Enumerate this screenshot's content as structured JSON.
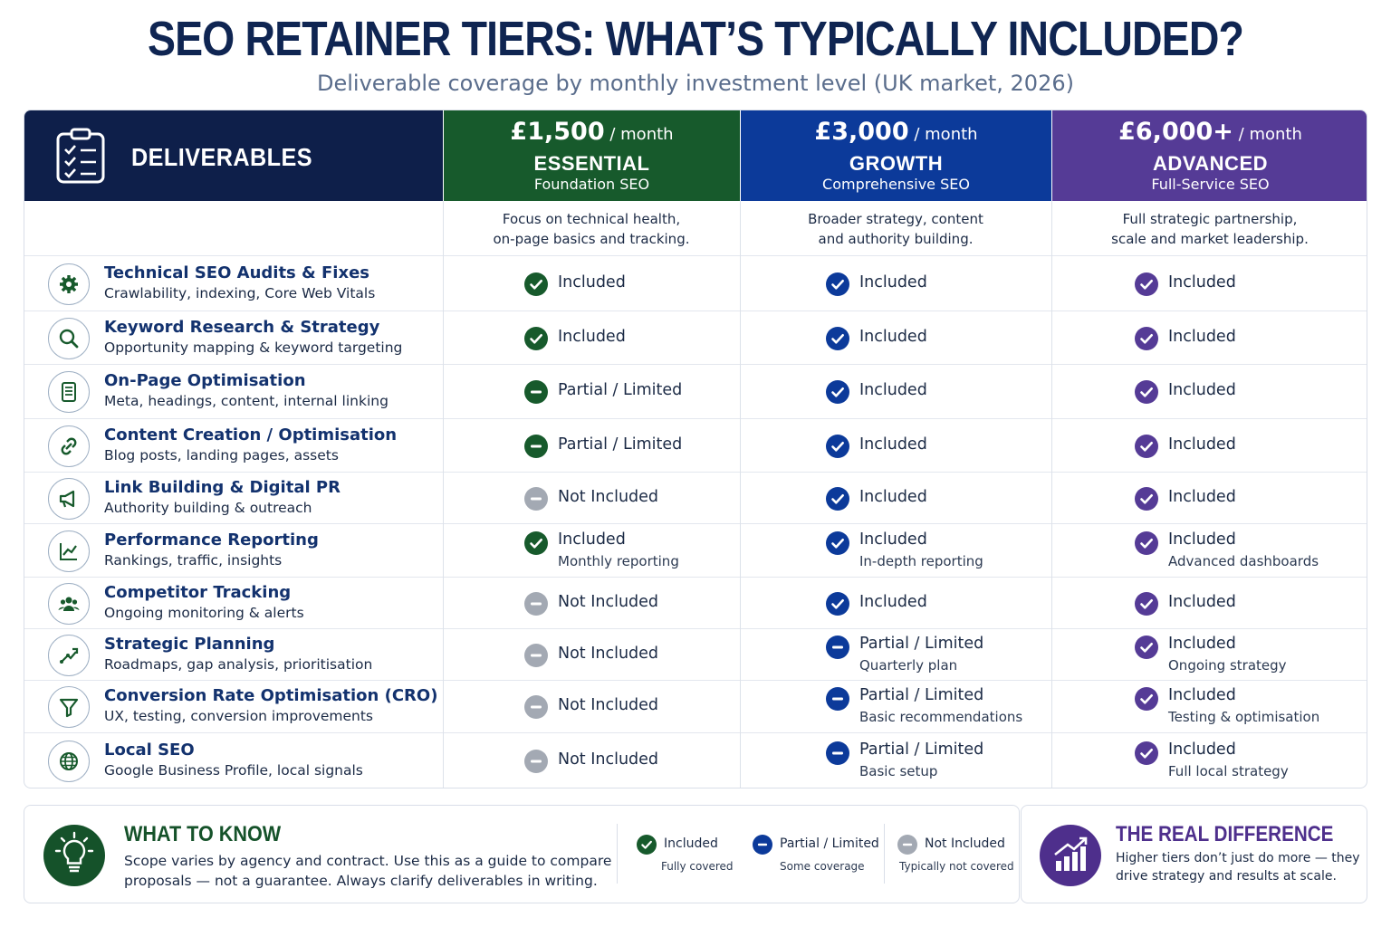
{
  "title": "SEO RETAINER TIERS: WHAT’S TYPICALLY INCLUDED?",
  "subtitle": "Deliverable coverage by monthly investment level (UK market, 2026)",
  "header": {
    "deliverables_label": "DELIVERABLES",
    "clipboard_icon": "clipboard-checklist-icon"
  },
  "tiers": [
    {
      "price": "£1,500",
      "per": "/ month",
      "name": "ESSENTIAL",
      "subtitle": "Foundation SEO",
      "color": "#175a2c",
      "desc_line1": "Focus on technical health,",
      "desc_line2": "on-page basics and tracking."
    },
    {
      "price": "£3,000",
      "per": "/ month",
      "name": "GROWTH",
      "subtitle": "Comprehensive SEO",
      "color": "#0c3a9a",
      "desc_line1": "Broader strategy, content",
      "desc_line2": "and authority building."
    },
    {
      "price": "£6,000+",
      "per": "/ month",
      "name": "ADVANCED",
      "subtitle": "Full-Service SEO",
      "color": "#553b96",
      "desc_line1": "Full strategic partnership,",
      "desc_line2": "scale and market leadership."
    }
  ],
  "status_colors": {
    "included_t1": "#175a2c",
    "included_t2": "#0c3a9a",
    "included_t3": "#553b96",
    "not_included": "#a3a9b3"
  },
  "rows": [
    {
      "title": "Technical SEO Audits & Fixes",
      "subtitle": "Crawlability, indexing, Core Web Vitals",
      "icon": "gear-icon",
      "cells": [
        {
          "status": "included",
          "text": "Included",
          "note": ""
        },
        {
          "status": "included",
          "text": "Included",
          "note": ""
        },
        {
          "status": "included",
          "text": "Included",
          "note": ""
        }
      ]
    },
    {
      "title": "Keyword Research & Strategy",
      "subtitle": "Opportunity mapping & keyword targeting",
      "icon": "search-icon",
      "cells": [
        {
          "status": "included",
          "text": "Included",
          "note": ""
        },
        {
          "status": "included",
          "text": "Included",
          "note": ""
        },
        {
          "status": "included",
          "text": "Included",
          "note": ""
        }
      ]
    },
    {
      "title": "On-Page Optimisation",
      "subtitle": "Meta, headings, content, internal linking",
      "icon": "document-icon",
      "cells": [
        {
          "status": "partial",
          "text": "Partial / Limited",
          "note": ""
        },
        {
          "status": "included",
          "text": "Included",
          "note": ""
        },
        {
          "status": "included",
          "text": "Included",
          "note": ""
        }
      ]
    },
    {
      "title": "Content Creation / Optimisation",
      "subtitle": "Blog posts, landing pages, assets",
      "icon": "link-icon",
      "cells": [
        {
          "status": "partial",
          "text": "Partial / Limited",
          "note": ""
        },
        {
          "status": "included",
          "text": "Included",
          "note": ""
        },
        {
          "status": "included",
          "text": "Included",
          "note": ""
        }
      ]
    },
    {
      "title": "Link Building & Digital PR",
      "subtitle": "Authority building & outreach",
      "icon": "megaphone-icon",
      "cells": [
        {
          "status": "not",
          "text": "Not Included",
          "note": ""
        },
        {
          "status": "included",
          "text": "Included",
          "note": ""
        },
        {
          "status": "included",
          "text": "Included",
          "note": ""
        }
      ]
    },
    {
      "title": "Performance Reporting",
      "subtitle": "Rankings, traffic, insights",
      "icon": "line-chart-icon",
      "cells": [
        {
          "status": "included",
          "text": "Included",
          "note": "Monthly reporting"
        },
        {
          "status": "included",
          "text": "Included",
          "note": "In-depth reporting"
        },
        {
          "status": "included",
          "text": "Included",
          "note": "Advanced dashboards"
        }
      ]
    },
    {
      "title": "Competitor Tracking",
      "subtitle": "Ongoing monitoring & alerts",
      "icon": "users-icon",
      "cells": [
        {
          "status": "not",
          "text": "Not Included",
          "note": ""
        },
        {
          "status": "included",
          "text": "Included",
          "note": ""
        },
        {
          "status": "included",
          "text": "Included",
          "note": ""
        }
      ]
    },
    {
      "title": "Strategic Planning",
      "subtitle": "Roadmaps, gap analysis, prioritisation",
      "icon": "strategy-arrows-icon",
      "cells": [
        {
          "status": "not",
          "text": "Not Included",
          "note": ""
        },
        {
          "status": "partial",
          "text": "Partial / Limited",
          "note": "Quarterly plan"
        },
        {
          "status": "included",
          "text": "Included",
          "note": "Ongoing strategy"
        }
      ]
    },
    {
      "title": "Conversion Rate Optimisation (CRO)",
      "subtitle": "UX, testing, conversion improvements",
      "icon": "funnel-icon",
      "cells": [
        {
          "status": "not",
          "text": "Not Included",
          "note": ""
        },
        {
          "status": "partial",
          "text": "Partial / Limited",
          "note": "Basic recommendations"
        },
        {
          "status": "included",
          "text": "Included",
          "note": "Testing & optimisation"
        }
      ]
    },
    {
      "title": "Local SEO",
      "subtitle": "Google Business Profile, local signals",
      "icon": "globe-icon",
      "cells": [
        {
          "status": "not",
          "text": "Not Included",
          "note": ""
        },
        {
          "status": "partial",
          "text": "Partial / Limited",
          "note": "Basic setup"
        },
        {
          "status": "included",
          "text": "Included",
          "note": "Full local strategy"
        }
      ]
    }
  ],
  "know": {
    "heading": "WHAT TO KNOW",
    "text": "Scope varies by agency and contract. Use this as a guide to compare proposals — not a guarantee. Always clarify deliverables in writing.",
    "icon": "lightbulb-icon"
  },
  "legend": [
    {
      "label": "Included",
      "sub": "Fully covered",
      "status": "included"
    },
    {
      "label": "Partial / Limited",
      "sub": "Some coverage",
      "status": "partial"
    },
    {
      "label": "Not Included",
      "sub": "Typically not covered",
      "status": "not"
    }
  ],
  "difference": {
    "heading": "THE REAL DIFFERENCE",
    "text": "Higher tiers don’t just do more — they drive strategy and results at scale.",
    "icon": "growth-chart-icon"
  }
}
